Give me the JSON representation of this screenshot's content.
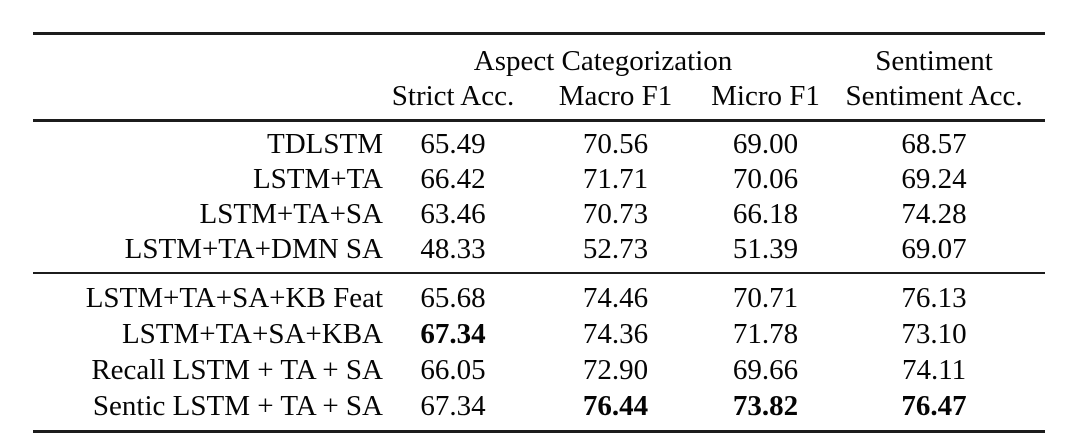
{
  "figure": {
    "colors": {
      "background": "#ffffff",
      "text": "#050505",
      "rule": "#1c1c1c"
    }
  },
  "table": {
    "column_groups": [
      {
        "label": "Aspect Categorization",
        "span": 3
      },
      {
        "label": "Sentiment",
        "span": 1
      }
    ],
    "column_headers": [
      "Strict Acc.",
      "Macro F1",
      "Micro F1",
      "Sentiment Acc."
    ],
    "row_groups": [
      {
        "rows": [
          {
            "label": "TDLSTM",
            "cells": [
              {
                "value": "65.49",
                "bold": false
              },
              {
                "value": "70.56",
                "bold": false
              },
              {
                "value": "69.00",
                "bold": false
              },
              {
                "value": "68.57",
                "bold": false
              }
            ]
          },
          {
            "label": "LSTM+TA",
            "cells": [
              {
                "value": "66.42",
                "bold": false
              },
              {
                "value": "71.71",
                "bold": false
              },
              {
                "value": "70.06",
                "bold": false
              },
              {
                "value": "69.24",
                "bold": false
              }
            ]
          },
          {
            "label": "LSTM+TA+SA",
            "cells": [
              {
                "value": "63.46",
                "bold": false
              },
              {
                "value": "70.73",
                "bold": false
              },
              {
                "value": "66.18",
                "bold": false
              },
              {
                "value": "74.28",
                "bold": false
              }
            ]
          },
          {
            "label": "LSTM+TA+DMN SA",
            "cells": [
              {
                "value": "48.33",
                "bold": false
              },
              {
                "value": "52.73",
                "bold": false
              },
              {
                "value": "51.39",
                "bold": false
              },
              {
                "value": "69.07",
                "bold": false
              }
            ]
          }
        ]
      },
      {
        "rows": [
          {
            "label": "LSTM+TA+SA+KB Feat",
            "cells": [
              {
                "value": "65.68",
                "bold": false
              },
              {
                "value": "74.46",
                "bold": false
              },
              {
                "value": "70.71",
                "bold": false
              },
              {
                "value": "76.13",
                "bold": false
              }
            ]
          },
          {
            "label": "LSTM+TA+SA+KBA",
            "cells": [
              {
                "value": "67.34",
                "bold": true
              },
              {
                "value": "74.36",
                "bold": false
              },
              {
                "value": "71.78",
                "bold": false
              },
              {
                "value": "73.10",
                "bold": false
              }
            ]
          },
          {
            "label": "Recall LSTM + TA + SA",
            "cells": [
              {
                "value": "66.05",
                "bold": false
              },
              {
                "value": "72.90",
                "bold": false
              },
              {
                "value": "69.66",
                "bold": false
              },
              {
                "value": "74.11",
                "bold": false
              }
            ]
          },
          {
            "label": "Sentic LSTM + TA + SA",
            "cells": [
              {
                "value": "67.34",
                "bold": false
              },
              {
                "value": "76.44",
                "bold": true
              },
              {
                "value": "73.82",
                "bold": true
              },
              {
                "value": "76.47",
                "bold": true
              }
            ]
          }
        ]
      }
    ]
  },
  "chart_data": {
    "type": "table",
    "title": "",
    "column_group_labels": [
      "Aspect Categorization",
      "Sentiment"
    ],
    "columns": [
      "Strict Acc.",
      "Macro F1",
      "Micro F1",
      "Sentiment Acc."
    ],
    "rows": [
      "TDLSTM",
      "LSTM+TA",
      "LSTM+TA+SA",
      "LSTM+TA+DMN SA",
      "LSTM+TA+SA+KB Feat",
      "LSTM+TA+SA+KBA",
      "Recall LSTM + TA + SA",
      "Sentic LSTM + TA + SA"
    ],
    "values": [
      [
        65.49,
        70.56,
        69.0,
        68.57
      ],
      [
        66.42,
        71.71,
        70.06,
        69.24
      ],
      [
        63.46,
        70.73,
        66.18,
        74.28
      ],
      [
        48.33,
        52.73,
        51.39,
        69.07
      ],
      [
        65.68,
        74.46,
        70.71,
        76.13
      ],
      [
        67.34,
        74.36,
        71.78,
        73.1
      ],
      [
        66.05,
        72.9,
        69.66,
        74.11
      ],
      [
        67.34,
        76.44,
        73.82,
        76.47
      ]
    ],
    "bold_values": [
      [
        6,
        "Strict Acc.",
        67.34
      ],
      [
        8,
        "Macro F1",
        76.44
      ],
      [
        8,
        "Micro F1",
        73.82
      ],
      [
        8,
        "Sentiment Acc.",
        76.47
      ]
    ]
  }
}
